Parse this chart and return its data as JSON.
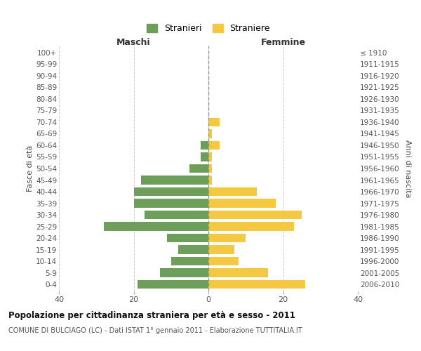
{
  "age_groups": [
    "0-4",
    "5-9",
    "10-14",
    "15-19",
    "20-24",
    "25-29",
    "30-34",
    "35-39",
    "40-44",
    "45-49",
    "50-54",
    "55-59",
    "60-64",
    "65-69",
    "70-74",
    "75-79",
    "80-84",
    "85-89",
    "90-94",
    "95-99",
    "100+"
  ],
  "birth_years": [
    "2006-2010",
    "2001-2005",
    "1996-2000",
    "1991-1995",
    "1986-1990",
    "1981-1985",
    "1976-1980",
    "1971-1975",
    "1966-1970",
    "1961-1965",
    "1956-1960",
    "1951-1955",
    "1946-1950",
    "1941-1945",
    "1936-1940",
    "1931-1935",
    "1926-1930",
    "1921-1925",
    "1916-1920",
    "1911-1915",
    "≤ 1910"
  ],
  "maschi": [
    19,
    13,
    10,
    8,
    11,
    28,
    17,
    20,
    20,
    18,
    5,
    2,
    2,
    0,
    0,
    0,
    0,
    0,
    0,
    0,
    0
  ],
  "femmine": [
    26,
    16,
    8,
    7,
    10,
    23,
    25,
    18,
    13,
    1,
    1,
    1,
    3,
    1,
    3,
    0,
    0,
    0,
    0,
    0,
    0
  ],
  "color_maschi": "#6d9e5a",
  "color_femmine": "#f5c842",
  "title": "Popolazione per cittadinanza straniera per età e sesso - 2011",
  "subtitle": "COMUNE DI BULCIAGO (LC) - Dati ISTAT 1° gennaio 2011 - Elaborazione TUTTITALIA.IT",
  "xlabel_left": "Maschi",
  "xlabel_right": "Femmine",
  "ylabel_left": "Fasce di età",
  "ylabel_right": "Anni di nascita",
  "legend_maschi": "Stranieri",
  "legend_femmine": "Straniere",
  "xlim": 40,
  "background_color": "#ffffff",
  "grid_color": "#cccccc"
}
